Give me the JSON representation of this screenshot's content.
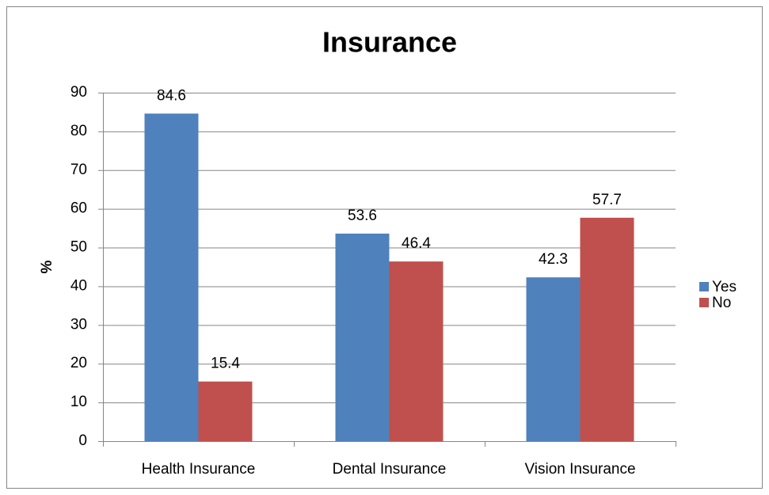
{
  "chart_data": {
    "type": "bar",
    "title": "Insurance",
    "y_label": "%",
    "categories": [
      "Health Insurance",
      "Dental Insurance",
      "Vision Insurance"
    ],
    "series": [
      {
        "name": "Yes",
        "color": "#4f81bd",
        "values": [
          84.6,
          53.6,
          42.3
        ]
      },
      {
        "name": "No",
        "color": "#c0504d",
        "values": [
          15.4,
          46.4,
          57.7
        ]
      }
    ],
    "ylim": [
      0,
      90
    ],
    "yticks": [
      0,
      10,
      20,
      30,
      40,
      50,
      60,
      70,
      80,
      90
    ],
    "grid": true,
    "legend": "right"
  }
}
